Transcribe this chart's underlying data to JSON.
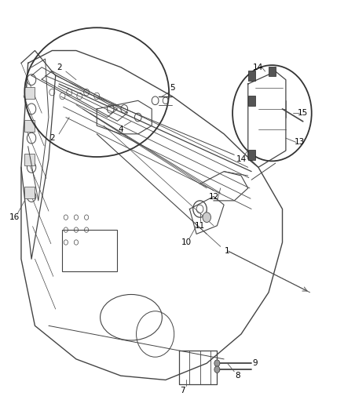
{
  "bg_color": "#ffffff",
  "fig_width": 4.39,
  "fig_height": 5.33,
  "dpi": 100,
  "image_data": "from_target"
}
